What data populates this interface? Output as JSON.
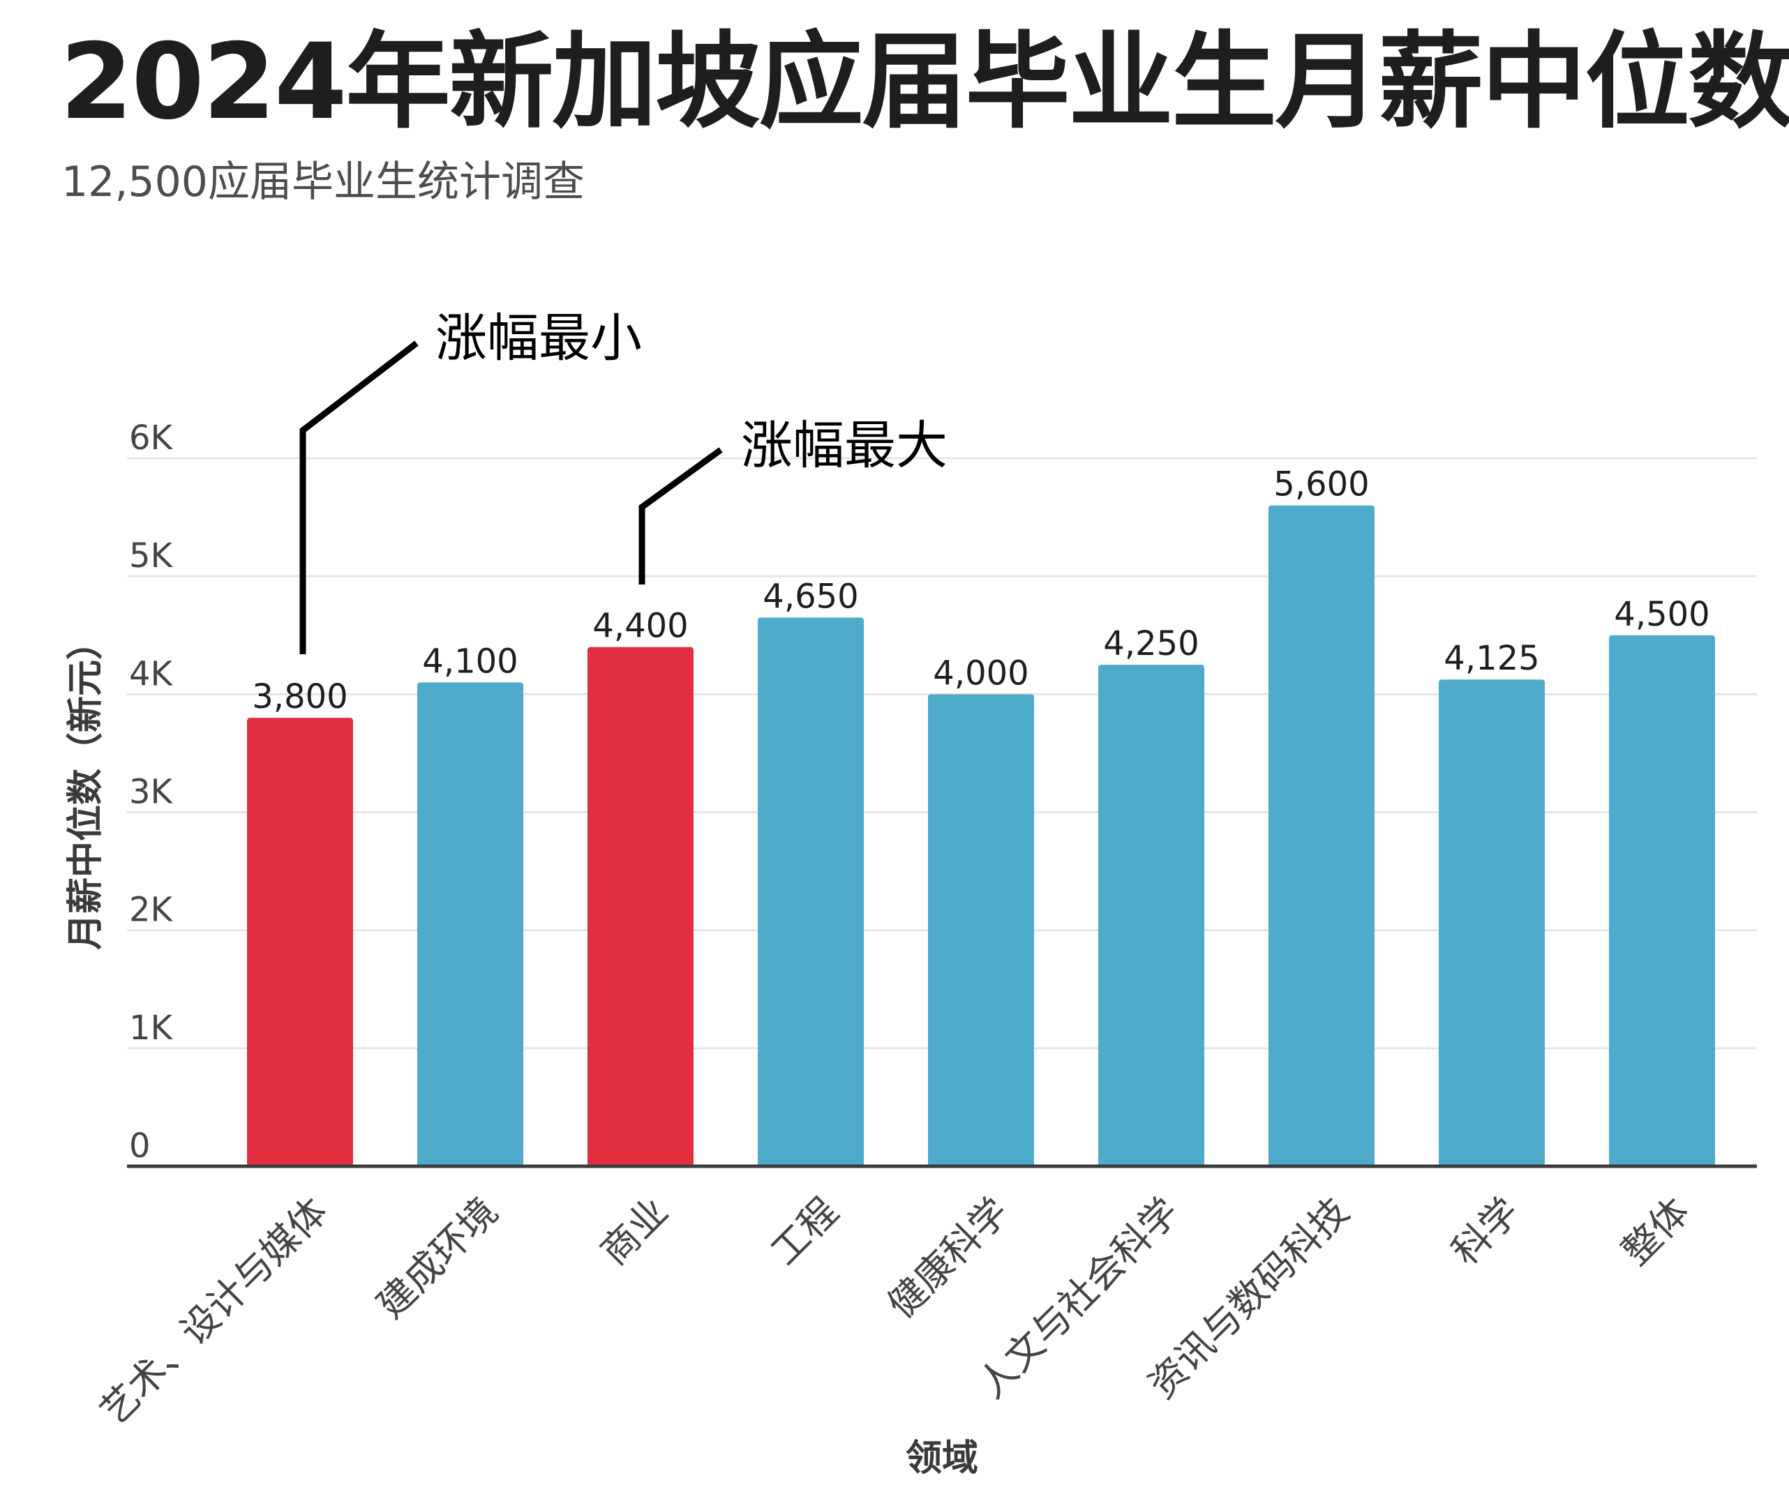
{
  "chart_data": {
    "type": "bar",
    "title": "2024年新加坡应届毕业生月薪中位数",
    "subtitle": "12,500应届毕业生统计调查",
    "xlabel": "领域",
    "ylabel": "月薪中位数（新元）",
    "ylim": [
      0,
      6000
    ],
    "yticks": [
      0,
      1000,
      2000,
      3000,
      4000,
      5000,
      6000
    ],
    "ytick_labels": [
      "0",
      "1K",
      "2K",
      "3K",
      "4K",
      "5K",
      "6K"
    ],
    "grid": true,
    "categories": [
      "艺术、设计与媒体",
      "建成环境",
      "商业",
      "工程",
      "健康科学",
      "人文与社会科学",
      "资讯与数码科技",
      "科学",
      "整体"
    ],
    "values": [
      3800,
      4100,
      4400,
      4650,
      4000,
      4250,
      5600,
      4125,
      4500
    ],
    "value_labels": [
      "3,800",
      "4,100",
      "4,400",
      "4,650",
      "4,000",
      "4,250",
      "5,600",
      "4,125",
      "4,500"
    ],
    "highlighted": [
      0,
      2
    ],
    "colors": {
      "bar": "#4fabca",
      "highlight": "#e22f40",
      "grid": "#e6e6e6",
      "axis": "#3c3c3c",
      "annotation_line": "#000000"
    },
    "annotations": [
      {
        "text": "涨幅最小",
        "category": "艺术、设计与媒体"
      },
      {
        "text": "涨幅最大",
        "category": "商业"
      }
    ]
  }
}
